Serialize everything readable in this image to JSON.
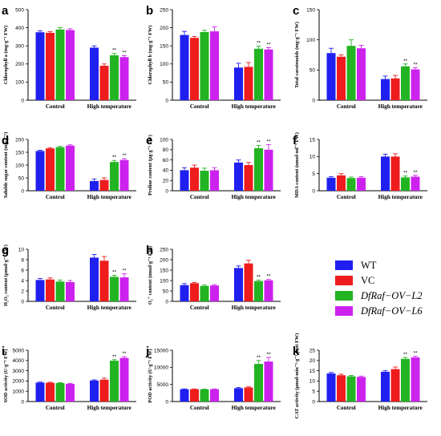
{
  "colors": {
    "WT": "#1f1ff0",
    "VC": "#ee1c1c",
    "L2": "#22b422",
    "L6": "#cc22ee",
    "axis": "#000000"
  },
  "legend": {
    "placement": "middle-right",
    "entries": [
      "WT",
      "VC",
      "DfRaf−OV−L2",
      "DfRaf−OV−L6"
    ]
  },
  "chart_data": [
    {
      "panel": "a",
      "type": "bar",
      "categories": [
        "Control",
        "High temperature"
      ],
      "ylabel": "Chlorophyll a (mg·g⁻¹ FW)",
      "ylim": [
        0,
        500
      ],
      "yticks": [
        0,
        100,
        200,
        300,
        400,
        500
      ],
      "series": [
        {
          "name": "WT",
          "values": [
            375,
            290
          ],
          "errors": [
            8,
            10
          ]
        },
        {
          "name": "VC",
          "values": [
            372,
            190
          ],
          "errors": [
            6,
            10
          ]
        },
        {
          "name": "DfRaf−OV−L2",
          "values": [
            390,
            248
          ],
          "errors": [
            10,
            10
          ]
        },
        {
          "name": "DfRaf−OV−L6",
          "values": [
            387,
            238
          ],
          "errors": [
            7,
            8
          ]
        }
      ],
      "annotations": [
        {
          "series": 2,
          "category": 1,
          "text": "**"
        },
        {
          "series": 3,
          "category": 1,
          "text": "**"
        }
      ]
    },
    {
      "panel": "b",
      "type": "bar",
      "categories": [
        "Control",
        "High temperature"
      ],
      "ylabel": "Chlorophyll b (mg·g⁻¹ FW)",
      "ylim": [
        0,
        250
      ],
      "yticks": [
        0,
        50,
        100,
        150,
        200,
        250
      ],
      "series": [
        {
          "name": "WT",
          "values": [
            180,
            90
          ],
          "errors": [
            10,
            12
          ]
        },
        {
          "name": "VC",
          "values": [
            172,
            92
          ],
          "errors": [
            4,
            12
          ]
        },
        {
          "name": "DfRaf−OV−L2",
          "values": [
            188,
            142
          ],
          "errors": [
            5,
            7
          ]
        },
        {
          "name": "DfRaf−OV−L6",
          "values": [
            190,
            140
          ],
          "errors": [
            12,
            5
          ]
        }
      ],
      "annotations": [
        {
          "series": 2,
          "category": 1,
          "text": "**"
        },
        {
          "series": 3,
          "category": 1,
          "text": "**"
        }
      ]
    },
    {
      "panel": "c",
      "type": "bar",
      "categories": [
        "Control",
        "High temperature"
      ],
      "ylabel": "Total carotenoids (mg·g⁻¹ FW)",
      "ylim": [
        0,
        150
      ],
      "yticks": [
        0,
        50,
        100,
        150
      ],
      "series": [
        {
          "name": "WT",
          "values": [
            78,
            35
          ],
          "errors": [
            8,
            5
          ]
        },
        {
          "name": "VC",
          "values": [
            72,
            36
          ],
          "errors": [
            3,
            5
          ]
        },
        {
          "name": "DfRaf−OV−L2",
          "values": [
            90,
            56
          ],
          "errors": [
            10,
            4
          ]
        },
        {
          "name": "DfRaf−OV−L6",
          "values": [
            86,
            51
          ],
          "errors": [
            5,
            3
          ]
        }
      ],
      "annotations": [
        {
          "series": 2,
          "category": 1,
          "text": "**"
        },
        {
          "series": 3,
          "category": 1,
          "text": "**"
        }
      ]
    },
    {
      "panel": "d",
      "type": "bar",
      "categories": [
        "Control",
        "High temperature"
      ],
      "ylabel": "Soluble sugar content (mg·g⁻¹)",
      "ylim": [
        0,
        200
      ],
      "yticks": [
        0,
        50,
        100,
        150,
        200
      ],
      "series": [
        {
          "name": "WT",
          "values": [
            155,
            38
          ],
          "errors": [
            3,
            8
          ]
        },
        {
          "name": "VC",
          "values": [
            165,
            42
          ],
          "errors": [
            3,
            8
          ]
        },
        {
          "name": "DfRaf−OV−L2",
          "values": [
            170,
            112
          ],
          "errors": [
            3,
            6
          ]
        },
        {
          "name": "DfRaf−OV−L6",
          "values": [
            176,
            120
          ],
          "errors": [
            3,
            5
          ]
        }
      ],
      "annotations": [
        {
          "series": 2,
          "category": 1,
          "text": "**"
        },
        {
          "series": 3,
          "category": 1,
          "text": "**"
        }
      ]
    },
    {
      "panel": "e",
      "type": "bar",
      "categories": [
        "Control",
        "High temperature"
      ],
      "ylabel": "Proline content (μg·g⁻¹ FW)",
      "ylim": [
        0,
        100
      ],
      "yticks": [
        0,
        20,
        40,
        60,
        80,
        100
      ],
      "series": [
        {
          "name": "WT",
          "values": [
            40,
            55
          ],
          "errors": [
            5,
            5
          ]
        },
        {
          "name": "VC",
          "values": [
            45,
            50
          ],
          "errors": [
            5,
            5
          ]
        },
        {
          "name": "DfRaf−OV−L2",
          "values": [
            39,
            83
          ],
          "errors": [
            5,
            5
          ]
        },
        {
          "name": "DfRaf−OV−L6",
          "values": [
            40,
            80
          ],
          "errors": [
            5,
            10
          ]
        }
      ],
      "annotations": [
        {
          "series": 2,
          "category": 1,
          "text": "**"
        },
        {
          "series": 3,
          "category": 1,
          "text": "**"
        }
      ]
    },
    {
      "panel": "f",
      "type": "bar",
      "categories": [
        "Control",
        "High temperature"
      ],
      "ylabel": "MDA content (nmol·ml⁻¹ FW)",
      "ylim": [
        0,
        15
      ],
      "yticks": [
        0,
        5,
        10,
        15
      ],
      "series": [
        {
          "name": "WT",
          "values": [
            3.8,
            10.0
          ],
          "errors": [
            0.3,
            0.7
          ]
        },
        {
          "name": "VC",
          "values": [
            4.5,
            10.0
          ],
          "errors": [
            0.5,
            0.8
          ]
        },
        {
          "name": "DfRaf−OV−L2",
          "values": [
            3.7,
            3.9
          ],
          "errors": [
            0.3,
            0.4
          ]
        },
        {
          "name": "DfRaf−OV−L6",
          "values": [
            3.8,
            4.1
          ],
          "errors": [
            0.3,
            0.4
          ]
        }
      ],
      "annotations": [
        {
          "series": 2,
          "category": 1,
          "text": "**"
        },
        {
          "series": 3,
          "category": 1,
          "text": "**"
        }
      ]
    },
    {
      "panel": "g",
      "type": "bar",
      "categories": [
        "Control",
        "High temperature"
      ],
      "ylabel": "H₂O₂ content (μmol·g⁻¹ FW)",
      "ylim": [
        0,
        10
      ],
      "yticks": [
        0,
        2,
        4,
        6,
        8,
        10
      ],
      "series": [
        {
          "name": "WT",
          "values": [
            4.1,
            8.4
          ],
          "errors": [
            0.3,
            0.6
          ]
        },
        {
          "name": "VC",
          "values": [
            4.2,
            7.8
          ],
          "errors": [
            0.3,
            0.8
          ]
        },
        {
          "name": "DfRaf−OV−L2",
          "values": [
            3.8,
            4.7
          ],
          "errors": [
            0.3,
            0.3
          ]
        },
        {
          "name": "DfRaf−OV−L6",
          "values": [
            3.7,
            4.6
          ],
          "errors": [
            0.3,
            0.7
          ]
        }
      ],
      "annotations": [
        {
          "series": 2,
          "category": 1,
          "text": "**"
        },
        {
          "series": 3,
          "category": 1,
          "text": "**"
        }
      ]
    },
    {
      "panel": "h",
      "type": "bar",
      "categories": [
        "Control",
        "High temperature"
      ],
      "ylabel": "O₂⁻ content (nmol·g⁻¹ FW)",
      "ylim": [
        0,
        250
      ],
      "yticks": [
        0,
        50,
        100,
        150,
        200,
        250
      ],
      "series": [
        {
          "name": "WT",
          "values": [
            78,
            160
          ],
          "errors": [
            7,
            10
          ]
        },
        {
          "name": "VC",
          "values": [
            87,
            182
          ],
          "errors": [
            4,
            15
          ]
        },
        {
          "name": "DfRaf−OV−L2",
          "values": [
            74,
            97
          ],
          "errors": [
            4,
            5
          ]
        },
        {
          "name": "DfRaf−OV−L6",
          "values": [
            76,
            101
          ],
          "errors": [
            4,
            4
          ]
        }
      ],
      "annotations": [
        {
          "series": 2,
          "category": 1,
          "text": "**"
        },
        {
          "series": 3,
          "category": 1,
          "text": "**"
        }
      ]
    },
    {
      "panel": "i",
      "type": "bar",
      "categories": [
        "Control",
        "High temperature"
      ],
      "ylabel": "SOD activity (U·g⁻¹ FW)",
      "ylim": [
        0,
        5000
      ],
      "yticks": [
        0,
        1000,
        2000,
        3000,
        4000,
        5000
      ],
      "series": [
        {
          "name": "WT",
          "values": [
            1850,
            2050
          ],
          "errors": [
            50,
            60
          ]
        },
        {
          "name": "VC",
          "values": [
            1830,
            2130
          ],
          "errors": [
            50,
            150
          ]
        },
        {
          "name": "DfRaf−OV−L2",
          "values": [
            1800,
            3980
          ],
          "errors": [
            40,
            100
          ]
        },
        {
          "name": "DfRaf−OV−L6",
          "values": [
            1720,
            4250
          ],
          "errors": [
            40,
            120
          ]
        }
      ],
      "annotations": [
        {
          "series": 2,
          "category": 1,
          "text": "**"
        },
        {
          "series": 3,
          "category": 1,
          "text": "**"
        }
      ]
    },
    {
      "panel": "j",
      "type": "bar",
      "categories": [
        "Control",
        "High temperature"
      ],
      "ylabel": "POD activity (U·g⁻¹ FW)",
      "ylim": [
        0,
        15000
      ],
      "yticks": [
        0,
        5000,
        10000,
        15000
      ],
      "series": [
        {
          "name": "WT",
          "values": [
            3600,
            3900
          ],
          "errors": [
            80,
            200
          ]
        },
        {
          "name": "VC",
          "values": [
            3600,
            4100
          ],
          "errors": [
            80,
            200
          ]
        },
        {
          "name": "DfRaf−OV−L2",
          "values": [
            3550,
            11000
          ],
          "errors": [
            80,
            1000
          ]
        },
        {
          "name": "DfRaf−OV−L6",
          "values": [
            3600,
            11700
          ],
          "errors": [
            80,
            1200
          ]
        }
      ],
      "annotations": [
        {
          "series": 2,
          "category": 1,
          "text": "**"
        },
        {
          "series": 3,
          "category": 1,
          "text": "**"
        }
      ]
    },
    {
      "panel": "k",
      "type": "bar",
      "categories": [
        "Control",
        "High temperature"
      ],
      "ylabel": "CAT activity (μmol·min⁻¹·g⁻¹ prot FW)",
      "ylim": [
        0,
        25
      ],
      "yticks": [
        0,
        5,
        10,
        15,
        20,
        25
      ],
      "series": [
        {
          "name": "WT",
          "values": [
            13.7,
            14.5
          ],
          "errors": [
            0.5,
            0.5
          ]
        },
        {
          "name": "VC",
          "values": [
            12.8,
            15.8
          ],
          "errors": [
            0.5,
            1.0
          ]
        },
        {
          "name": "DfRaf−OV−L2",
          "values": [
            12.3,
            20.8
          ],
          "errors": [
            0.4,
            0.7
          ]
        },
        {
          "name": "DfRaf−OV−L6",
          "values": [
            12.0,
            21.5
          ],
          "errors": [
            0.4,
            0.6
          ]
        }
      ],
      "annotations": [
        {
          "series": 2,
          "category": 1,
          "text": "**"
        },
        {
          "series": 3,
          "category": 1,
          "text": "**"
        }
      ]
    }
  ]
}
